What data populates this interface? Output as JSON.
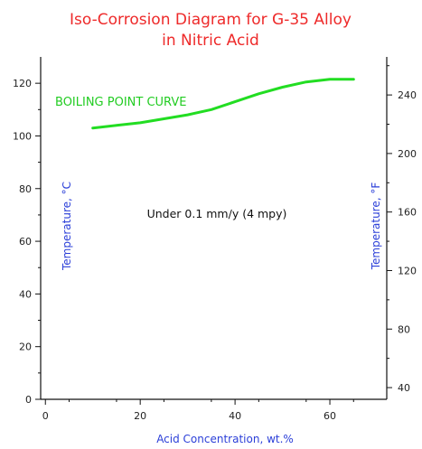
{
  "chart_data": {
    "type": "line",
    "title": "Iso-Corrosion Diagram for G-35 Alloy",
    "subtitle": "in Nitric Acid",
    "xlabel": "Acid Concentration, wt.%",
    "ylabel": "Temperature, °C",
    "ylabel_right": "Temperature, °F",
    "xlim": [
      -1,
      72
    ],
    "ylim": [
      0,
      130
    ],
    "y2lim": [
      32,
      266
    ],
    "x_ticks": [
      0,
      20,
      40,
      60
    ],
    "y_ticks": [
      0,
      20,
      40,
      60,
      80,
      100,
      120
    ],
    "y2_ticks": [
      40,
      80,
      120,
      160,
      200,
      240
    ],
    "grid": false,
    "colors": {
      "curve": "#22dd22",
      "title": "#ee2a2a",
      "axis_title": "#2b3fd8"
    },
    "series": [
      {
        "name": "BOILING POINT CURVE",
        "x": [
          10,
          15,
          20,
          25,
          30,
          35,
          40,
          45,
          50,
          55,
          60,
          65
        ],
        "y": [
          103,
          104,
          105,
          106.5,
          108,
          110,
          113,
          116,
          118.5,
          120.5,
          121.5,
          121.5
        ]
      }
    ],
    "annotations": [
      {
        "text": "Under 0.1 mm/y (4 mpy)"
      }
    ]
  }
}
